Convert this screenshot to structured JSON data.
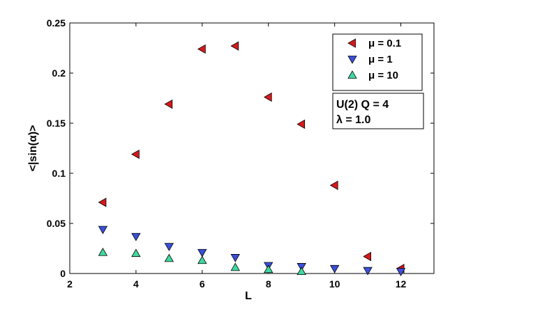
{
  "chart_data": {
    "type": "scatter",
    "title": "",
    "xlabel": "L",
    "ylabel": "<|sin(α)>",
    "xlim": [
      2,
      13
    ],
    "ylim": [
      0,
      0.25
    ],
    "xticks": [
      2,
      4,
      6,
      8,
      10,
      12
    ],
    "yticks": [
      0,
      0.05,
      0.1,
      0.15,
      0.2,
      0.25
    ],
    "xtick_labels": [
      "2",
      "4",
      "6",
      "8",
      "10",
      "12"
    ],
    "ytick_labels": [
      "0",
      "0.05",
      "0.1",
      "0.15",
      "0.2",
      "0.25"
    ],
    "grid": false,
    "legend_position": "top-right",
    "series": [
      {
        "name": "μ = 0.1",
        "color": "#d7191c",
        "marker": "triangle-left",
        "x": [
          3,
          4,
          5,
          6,
          7,
          8,
          9,
          10,
          11,
          12
        ],
        "y": [
          0.071,
          0.119,
          0.169,
          0.224,
          0.227,
          0.176,
          0.149,
          0.088,
          0.017,
          0.005
        ]
      },
      {
        "name": "μ = 1",
        "color": "#3b50d9",
        "marker": "triangle-down",
        "x": [
          3,
          4,
          5,
          6,
          7,
          8,
          9,
          10,
          11,
          12
        ],
        "y": [
          0.044,
          0.037,
          0.027,
          0.021,
          0.016,
          0.008,
          0.007,
          0.005,
          0.003,
          0.002
        ]
      },
      {
        "name": "μ = 10",
        "color": "#3fd9a0",
        "marker": "triangle-up",
        "x": [
          3,
          4,
          5,
          6,
          7,
          8,
          9
        ],
        "y": [
          0.021,
          0.02,
          0.015,
          0.013,
          0.006,
          0.004,
          0.002
        ]
      }
    ],
    "annotations": [
      "U(2) Q = 4",
      "λ = 1.0"
    ]
  }
}
